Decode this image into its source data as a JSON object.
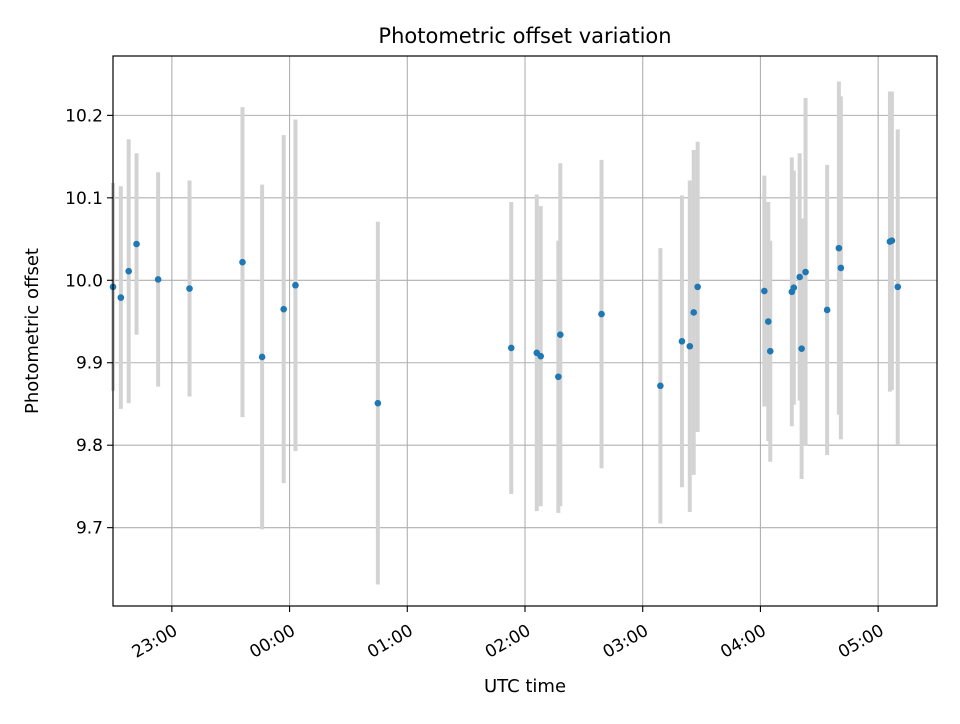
{
  "chart_data": {
    "type": "scatter",
    "title": "Photometric offset variation",
    "xlabel": "UTC time",
    "ylabel": "Photometric offset",
    "x_is_time": true,
    "xlim": [
      "22:30",
      "05:30"
    ],
    "ylim": [
      9.605,
      10.272
    ],
    "xticks": [
      "23:00",
      "00:00",
      "01:00",
      "02:00",
      "03:00",
      "04:00",
      "05:00"
    ],
    "yticks": [
      "9.7",
      "9.8",
      "9.9",
      "10.0",
      "10.1",
      "10.2"
    ],
    "grid": true,
    "marker_color": "#1f77b4",
    "errorbar_color": "#d3d3d3",
    "points": [
      {
        "time": "22:30",
        "y": 9.992,
        "err": 0.126
      },
      {
        "time": "22:34",
        "y": 9.979,
        "err": 0.135
      },
      {
        "time": "22:38",
        "y": 10.011,
        "err": 0.16
      },
      {
        "time": "22:42",
        "y": 10.044,
        "err": 0.11
      },
      {
        "time": "22:53",
        "y": 10.001,
        "err": 0.13
      },
      {
        "time": "23:09",
        "y": 9.99,
        "err": 0.131
      },
      {
        "time": "23:36",
        "y": 10.022,
        "err": 0.188
      },
      {
        "time": "23:46",
        "y": 9.907,
        "err": 0.209
      },
      {
        "time": "23:57",
        "y": 9.965,
        "err": 0.211
      },
      {
        "time": "00:03",
        "y": 9.994,
        "err": 0.201
      },
      {
        "time": "00:45",
        "y": 9.851,
        "err": 0.22
      },
      {
        "time": "01:53",
        "y": 9.918,
        "err": 0.177
      },
      {
        "time": "02:06",
        "y": 9.912,
        "err": 0.192
      },
      {
        "time": "02:08",
        "y": 9.908,
        "err": 0.182
      },
      {
        "time": "02:17",
        "y": 9.883,
        "err": 0.165
      },
      {
        "time": "02:18",
        "y": 9.934,
        "err": 0.208
      },
      {
        "time": "02:39",
        "y": 9.959,
        "err": 0.187
      },
      {
        "time": "03:09",
        "y": 9.872,
        "err": 0.167
      },
      {
        "time": "03:20",
        "y": 9.926,
        "err": 0.177
      },
      {
        "time": "03:24",
        "y": 9.92,
        "err": 0.201
      },
      {
        "time": "03:26",
        "y": 9.961,
        "err": 0.197
      },
      {
        "time": "03:28",
        "y": 9.992,
        "err": 0.176
      },
      {
        "time": "04:02",
        "y": 9.987,
        "err": 0.14
      },
      {
        "time": "04:04",
        "y": 9.95,
        "err": 0.145
      },
      {
        "time": "04:05",
        "y": 9.914,
        "err": 0.134
      },
      {
        "time": "04:16",
        "y": 9.986,
        "err": 0.163
      },
      {
        "time": "04:17",
        "y": 9.991,
        "err": 0.142
      },
      {
        "time": "04:20",
        "y": 10.004,
        "err": 0.15
      },
      {
        "time": "04:21",
        "y": 9.917,
        "err": 0.158
      },
      {
        "time": "04:23",
        "y": 10.01,
        "err": 0.211
      },
      {
        "time": "04:34",
        "y": 9.964,
        "err": 0.176
      },
      {
        "time": "04:40",
        "y": 10.039,
        "err": 0.202
      },
      {
        "time": "04:41",
        "y": 10.015,
        "err": 0.208
      },
      {
        "time": "05:06",
        "y": 10.047,
        "err": 0.182
      },
      {
        "time": "05:07",
        "y": 10.048,
        "err": 0.181
      },
      {
        "time": "05:10",
        "y": 9.992,
        "err": 0.191
      }
    ]
  }
}
